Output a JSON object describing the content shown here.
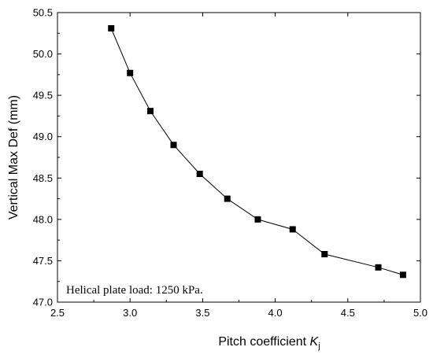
{
  "chart_data": {
    "type": "line",
    "markers": "square",
    "xlabel": "Pitch coefficient ",
    "xlabel_symbol": "K",
    "xlabel_subscript": "j",
    "ylabel": "Vertical Max Def (mm)",
    "xlim": [
      2.5,
      5.0
    ],
    "ylim": [
      47.0,
      50.5
    ],
    "xticks": [
      "2.5",
      "3.0",
      "3.5",
      "4.0",
      "4.5",
      "5.0"
    ],
    "yticks": [
      "47.0",
      "47.5",
      "48.0",
      "48.5",
      "49.0",
      "49.5",
      "50.0",
      "50.5"
    ],
    "grid": false,
    "annotation": "Helical plate load: 1250 kPa.",
    "series": [
      {
        "color": "#000000",
        "x": [
          2.87,
          3.0,
          3.14,
          3.3,
          3.48,
          3.67,
          3.88,
          4.12,
          4.34,
          4.71,
          4.88
        ],
        "y": [
          50.31,
          49.77,
          49.31,
          48.9,
          48.55,
          48.25,
          48.0,
          47.88,
          47.58,
          47.42,
          47.33
        ]
      }
    ]
  }
}
